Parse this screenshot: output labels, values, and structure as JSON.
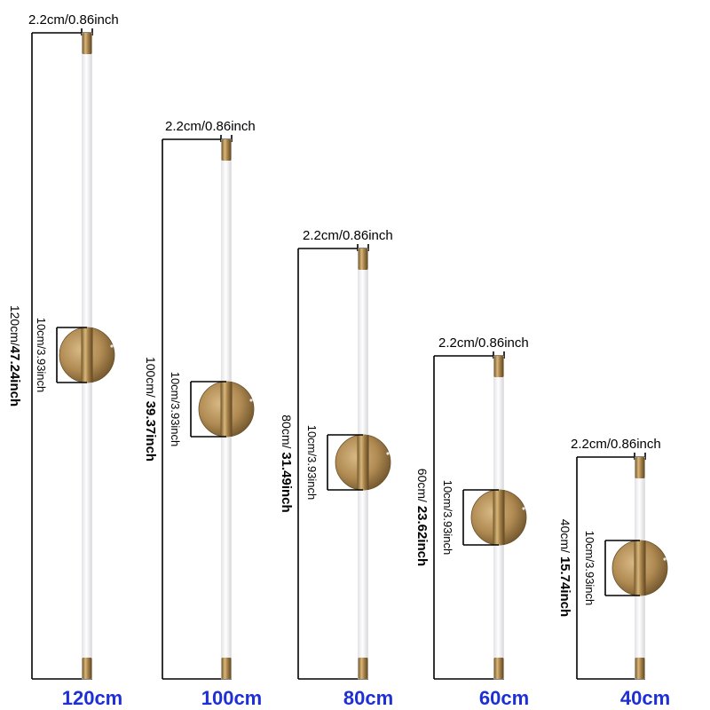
{
  "colors": {
    "label_blue": "#1f2fd6",
    "tube": "#ffffff",
    "brass": "#b8955a",
    "brass_dark": "#7a5f32",
    "line": "#000000"
  },
  "lamps": [
    {
      "size_label": "120cm",
      "length_cm": 120,
      "height_prefix": "120cm/",
      "height_bold": "47.24inch",
      "width_label": "2.2cm/0.86inch",
      "plate_label": "10cm/3.93inch"
    },
    {
      "size_label": "100cm",
      "length_cm": 100,
      "height_prefix": "100cm/ ",
      "height_bold": "39.37inch",
      "width_label": "2.2cm/0.86inch",
      "plate_label": "10cm/3.93inch"
    },
    {
      "size_label": "80cm",
      "length_cm": 80,
      "height_prefix": "80cm/ ",
      "height_bold": "31.49inch",
      "width_label": "2.2cm/0.86inch",
      "plate_label": "10cm/3.93inch"
    },
    {
      "size_label": "60cm",
      "length_cm": 60,
      "height_prefix": "60cm/ ",
      "height_bold": "23.62inch",
      "width_label": "2.2cm/0.86inch",
      "plate_label": "10cm/3.93inch"
    },
    {
      "size_label": "40cm",
      "length_cm": 40,
      "height_prefix": "40cm/ ",
      "height_bold": "15.74inch",
      "width_label": "2.2cm/0.86inch",
      "plate_label": "10cm/3.93inch"
    }
  ]
}
